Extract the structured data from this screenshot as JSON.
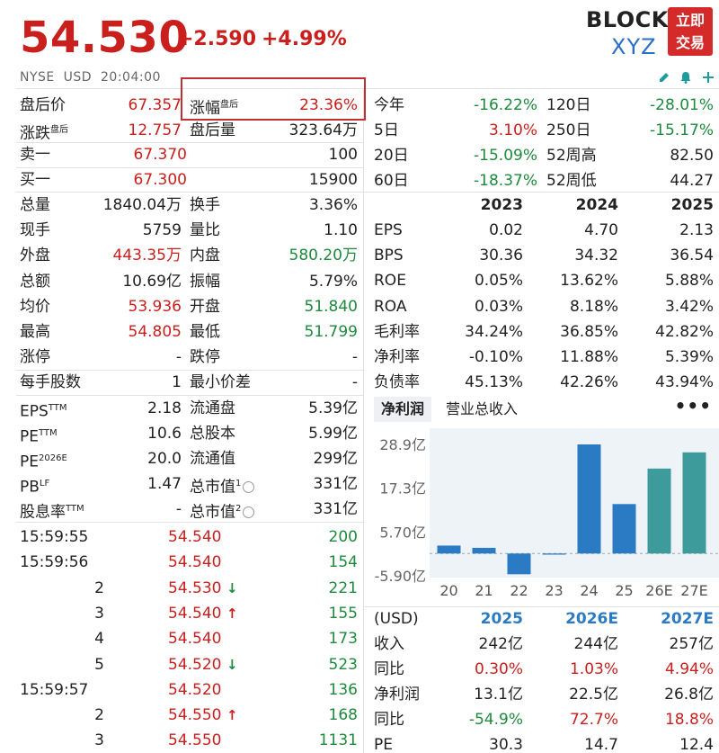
{
  "header": {
    "price": "54.530",
    "change": "+2.590",
    "change_pct": "+4.99%",
    "ticker_line1": "BLOCK",
    "ticker_line2": "XYZ",
    "trade_button": [
      "立即",
      "交易"
    ],
    "exchange": "NYSE",
    "currency": "USD",
    "time": "20:04:00",
    "icons": [
      "edit-icon",
      "bell-icon",
      "add-icon"
    ]
  },
  "quote_left": [
    {
      "label": "盘后价",
      "value": "67.357",
      "color": "red",
      "label2": "涨幅",
      "label2_sup": "盘后",
      "value2": "23.36%",
      "color2": "red"
    },
    {
      "label": "涨跌",
      "label_sup": "盘后",
      "value": "12.757",
      "color": "red",
      "label2": "盘后量",
      "value2": "323.64万",
      "color2": "dark"
    }
  ],
  "order_book": [
    {
      "label": "卖一",
      "price": "67.370",
      "qty": "100"
    },
    {
      "label": "买一",
      "price": "67.300",
      "qty": "15900"
    }
  ],
  "stats": [
    {
      "l1": "总量",
      "v1": "1840.04万",
      "c1": "dark",
      "l2": "换手",
      "v2": "3.36%",
      "c2": "dark"
    },
    {
      "l1": "现手",
      "v1": "5759",
      "c1": "dark",
      "l2": "量比",
      "v2": "1.10",
      "c2": "dark"
    },
    {
      "l1": "外盘",
      "v1": "443.35万",
      "c1": "red",
      "l2": "内盘",
      "v2": "580.20万",
      "c2": "green"
    },
    {
      "l1": "总额",
      "v1": "10.69亿",
      "c1": "dark",
      "l2": "振幅",
      "v2": "5.79%",
      "c2": "dark"
    },
    {
      "l1": "均价",
      "v1": "53.936",
      "c1": "red",
      "l2": "开盘",
      "v2": "51.840",
      "c2": "green"
    },
    {
      "l1": "最高",
      "v1": "54.805",
      "c1": "red",
      "l2": "最低",
      "v2": "51.799",
      "c2": "green"
    },
    {
      "l1": "涨停",
      "v1": "-",
      "c1": "dark",
      "l2": "跌停",
      "v2": "-",
      "c2": "dark"
    }
  ],
  "lot": {
    "l1": "每手股数",
    "v1": "1",
    "l2": "最小价差",
    "v2": "-"
  },
  "valuation": [
    {
      "l1": "EPS",
      "s1": "TTM",
      "v1": "2.18",
      "l2": "流通盘",
      "v2": "5.39亿"
    },
    {
      "l1": "PE",
      "s1": "TTM",
      "v1": "10.6",
      "l2": "总股本",
      "v2": "5.99亿"
    },
    {
      "l1": "PE",
      "s1": "2026E",
      "v1": "20.0",
      "l2": "流通值",
      "v2": "299亿"
    },
    {
      "l1": "PB",
      "s1": "LF",
      "v1": "1.47",
      "l2": "总市值",
      "s2": "1",
      "v2": "331亿"
    },
    {
      "l1": "股息率",
      "s1": "TTM",
      "v1": "-",
      "l2": "总市值",
      "s2": "2",
      "v2": "331亿"
    }
  ],
  "ticks": [
    {
      "time": "15:59:55",
      "price": "54.540",
      "arrow": "",
      "qty": "200"
    },
    {
      "time": "15:59:56",
      "price": "54.540",
      "arrow": "",
      "qty": "154"
    },
    {
      "time": "2",
      "price": "54.530",
      "arrow": "down",
      "qty": "221"
    },
    {
      "time": "3",
      "price": "54.540",
      "arrow": "up",
      "qty": "155"
    },
    {
      "time": "4",
      "price": "54.540",
      "arrow": "",
      "qty": "173"
    },
    {
      "time": "5",
      "price": "54.520",
      "arrow": "down",
      "qty": "523"
    },
    {
      "time": "15:59:57",
      "price": "54.520",
      "arrow": "",
      "qty": "136"
    },
    {
      "time": "2",
      "price": "54.550",
      "arrow": "up",
      "qty": "168"
    },
    {
      "time": "3",
      "price": "54.550",
      "arrow": "",
      "qty": "1131"
    }
  ],
  "performance": [
    {
      "l1": "今年",
      "v1": "-16.22%",
      "c1": "green",
      "l2": "120日",
      "v2": "-28.01%",
      "c2": "green"
    },
    {
      "l1": "5日",
      "v1": "3.10%",
      "c1": "red",
      "l2": "250日",
      "v2": "-15.17%",
      "c2": "green"
    },
    {
      "l1": "20日",
      "v1": "-15.09%",
      "c1": "green",
      "l2": "52周高",
      "v2": "82.50",
      "c2": "dark"
    },
    {
      "l1": "60日",
      "v1": "-18.37%",
      "c1": "green",
      "l2": "52周低",
      "v2": "44.27",
      "c2": "dark"
    }
  ],
  "fundamentals": {
    "years": [
      "2023",
      "2024",
      "2025"
    ],
    "rows": [
      {
        "label": "EPS",
        "values": [
          "0.02",
          "4.70",
          "2.13"
        ]
      },
      {
        "label": "BPS",
        "values": [
          "30.36",
          "34.32",
          "36.54"
        ]
      },
      {
        "label": "ROE",
        "values": [
          "0.05%",
          "13.62%",
          "5.88%"
        ]
      },
      {
        "label": "ROA",
        "values": [
          "0.03%",
          "8.18%",
          "3.42%"
        ]
      },
      {
        "label": "毛利率",
        "values": [
          "34.24%",
          "36.85%",
          "42.82%"
        ]
      },
      {
        "label": "净利率",
        "values": [
          "-0.10%",
          "11.88%",
          "5.39%"
        ]
      },
      {
        "label": "负债率",
        "values": [
          "45.13%",
          "42.26%",
          "43.94%"
        ]
      }
    ]
  },
  "chart_tabs": {
    "active": "净利润",
    "other": "营业总收入",
    "more": "•••"
  },
  "chart_data": {
    "type": "bar",
    "categories": [
      "20",
      "21",
      "22",
      "23",
      "24",
      "25",
      "26E",
      "27E"
    ],
    "values": [
      2.1,
      1.5,
      -5.5,
      -0.3,
      28.9,
      13.1,
      22.5,
      26.8
    ],
    "estimate_flags": [
      false,
      false,
      false,
      false,
      false,
      false,
      true,
      true
    ],
    "y_ticks": [
      "28.9亿",
      "17.3亿",
      "5.70亿",
      "-5.90亿"
    ],
    "y_tick_values": [
      28.9,
      17.3,
      5.7,
      -5.9
    ],
    "ylim": [
      -5.9,
      28.9
    ],
    "colors": {
      "actual": "#2b7bc4",
      "estimate": "#3e9b9b"
    }
  },
  "forecast": {
    "header": [
      "(USD)",
      "2025",
      "2026E",
      "2027E"
    ],
    "rows": [
      {
        "label": "收入",
        "values": [
          "242亿",
          "244亿",
          "257亿"
        ],
        "colors": [
          "dark",
          "dark",
          "dark"
        ]
      },
      {
        "label": "同比",
        "values": [
          "0.30%",
          "1.03%",
          "4.94%"
        ],
        "colors": [
          "red",
          "red",
          "red"
        ]
      },
      {
        "label": "净利润",
        "values": [
          "13.1亿",
          "22.5亿",
          "26.8亿"
        ],
        "colors": [
          "dark",
          "dark",
          "dark"
        ]
      },
      {
        "label": "同比",
        "values": [
          "-54.9%",
          "72.7%",
          "18.8%"
        ],
        "colors": [
          "green",
          "red",
          "red"
        ]
      },
      {
        "label": "PE",
        "values": [
          "30.3",
          "14.7",
          "12.4"
        ],
        "colors": [
          "dark",
          "dark",
          "dark"
        ]
      }
    ]
  },
  "colors": {
    "red": "#c9201e",
    "green": "#1e8a3c",
    "blue": "#2b7bc4",
    "teal": "#3e9b9b"
  }
}
